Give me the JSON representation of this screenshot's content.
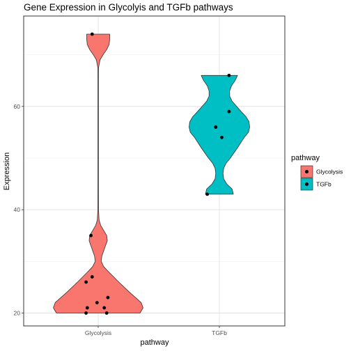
{
  "chart_data": {
    "type": "violin",
    "title": "Gene Expression in Glycolyis and TGFb pathways",
    "xlabel": "pathway",
    "ylabel": "Expression",
    "categories": [
      "Glycolysis",
      "TGFb"
    ],
    "ylim": [
      17.5,
      77.5
    ],
    "yticks": [
      20,
      40,
      60
    ],
    "grid": true,
    "legend": {
      "title": "pathway",
      "position": "right",
      "entries": [
        "Glycolysis",
        "TGFb"
      ]
    },
    "series": [
      {
        "category": "Glycolysis",
        "color": "#F8766D",
        "points": [
          {
            "x": -0.05,
            "y": 74
          },
          {
            "x": -0.06,
            "y": 35
          },
          {
            "x": -0.05,
            "y": 27
          },
          {
            "x": -0.1,
            "y": 26
          },
          {
            "x": 0.08,
            "y": 23
          },
          {
            "x": -0.01,
            "y": 22
          },
          {
            "x": -0.09,
            "y": 21
          },
          {
            "x": 0.05,
            "y": 21
          },
          {
            "x": -0.1,
            "y": 20
          },
          {
            "x": 0.07,
            "y": 20
          }
        ],
        "violin_range": [
          20,
          74
        ],
        "density_profile": [
          [
            20,
            0.69
          ],
          [
            21,
            0.74
          ],
          [
            22,
            0.71
          ],
          [
            24,
            0.52
          ],
          [
            26,
            0.34
          ],
          [
            28,
            0.17
          ],
          [
            29,
            0.09
          ],
          [
            30,
            0.05
          ],
          [
            31,
            0.06
          ],
          [
            33,
            0.12
          ],
          [
            34,
            0.15
          ],
          [
            35,
            0.14
          ],
          [
            36,
            0.09
          ],
          [
            37,
            0.04
          ],
          [
            38,
            0.015
          ],
          [
            40,
            0.006
          ],
          [
            45,
            0.005
          ],
          [
            55,
            0.005
          ],
          [
            65,
            0.005
          ],
          [
            67.5,
            0.006
          ],
          [
            69,
            0.03
          ],
          [
            70,
            0.08
          ],
          [
            71,
            0.14
          ],
          [
            72,
            0.18
          ],
          [
            73,
            0.19
          ],
          [
            74,
            0.19
          ]
        ]
      },
      {
        "category": "TGFb",
        "color": "#00BFC4",
        "points": [
          {
            "x": 0.08,
            "y": 66
          },
          {
            "x": 0.08,
            "y": 59
          },
          {
            "x": -0.03,
            "y": 56
          },
          {
            "x": 0.02,
            "y": 54
          },
          {
            "x": -0.1,
            "y": 43
          }
        ],
        "violin_range": [
          43,
          66
        ],
        "density_profile": [
          [
            43,
            0.23
          ],
          [
            44,
            0.21
          ],
          [
            45,
            0.12
          ],
          [
            46,
            0.07
          ],
          [
            47,
            0.06
          ],
          [
            48,
            0.07
          ],
          [
            49,
            0.11
          ],
          [
            50,
            0.18
          ],
          [
            52,
            0.3
          ],
          [
            54,
            0.41
          ],
          [
            55,
            0.48
          ],
          [
            56,
            0.5
          ],
          [
            57,
            0.49
          ],
          [
            58,
            0.44
          ],
          [
            59,
            0.36
          ],
          [
            61,
            0.21
          ],
          [
            62,
            0.17
          ],
          [
            63,
            0.17
          ],
          [
            64,
            0.2
          ],
          [
            65,
            0.26
          ],
          [
            66,
            0.3
          ]
        ]
      }
    ]
  }
}
